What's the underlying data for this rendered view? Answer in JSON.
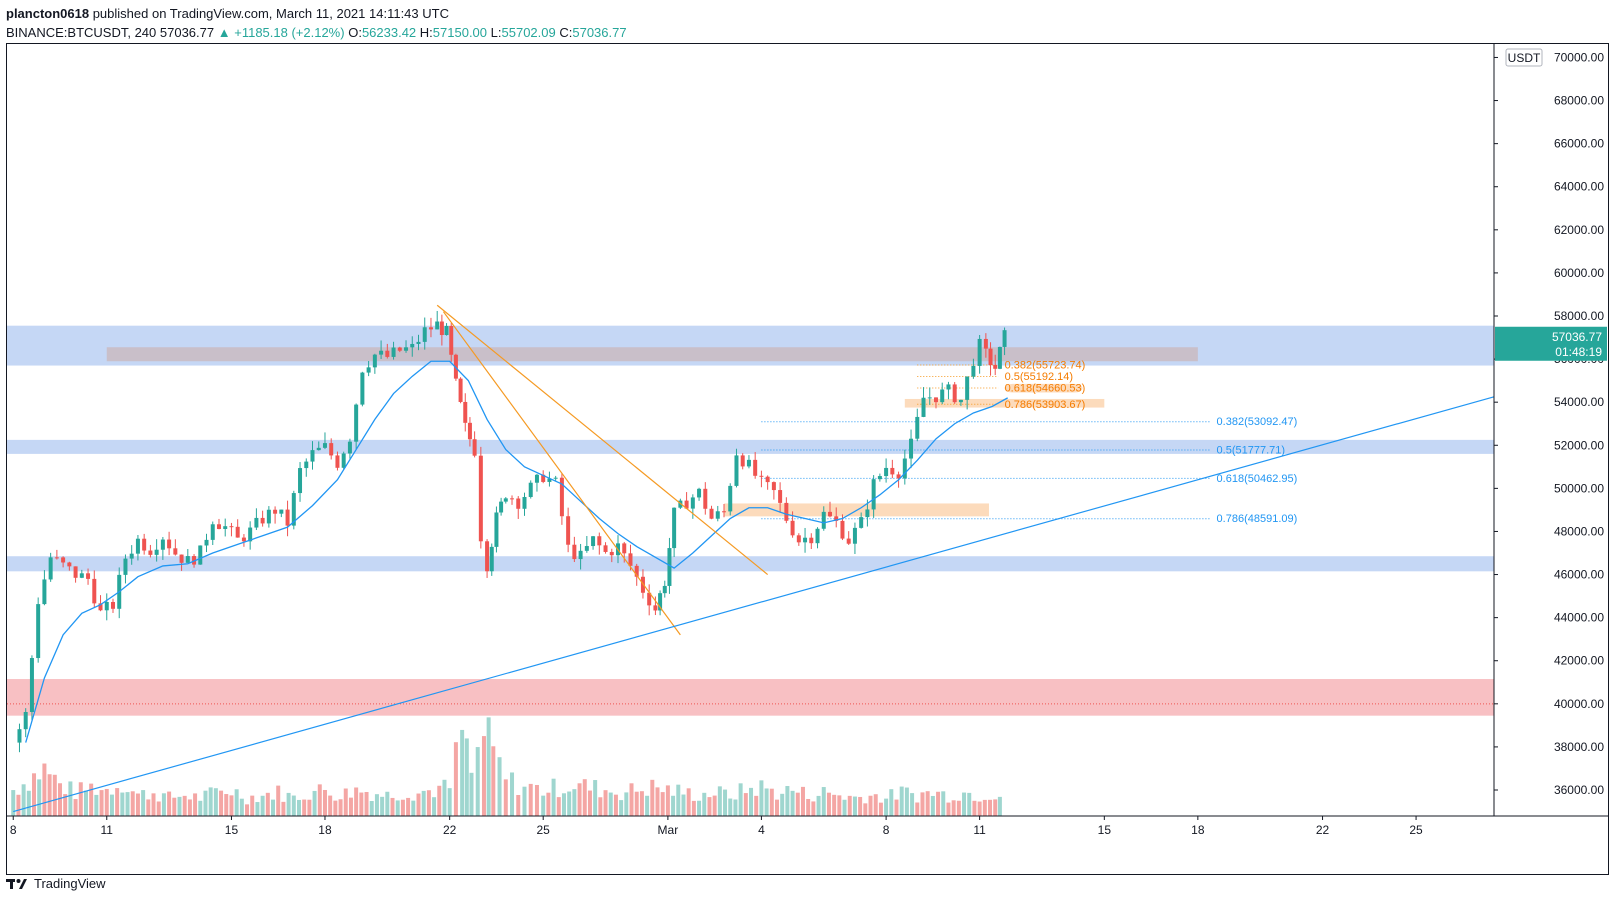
{
  "header": {
    "publisher_line": "plancton0618 published on TradingView.com, March 11, 2021 14:11:43 UTC",
    "author": "plancton0618",
    "publisher_rest": " published on TradingView.com, March 11, 2021 14:11:43 UTC",
    "symbol": "BINANCE:BTCUSDT, 240",
    "last": "57036.77",
    "change": "▲ +1185.18 (+2.12%)",
    "o_label": "O:",
    "o": "56233.42",
    "h_label": "H:",
    "h": "57150.00",
    "l_label": "L:",
    "l": "55702.09",
    "c_label": "C:",
    "c": "57036.77"
  },
  "footer": {
    "brand": "TradingView"
  },
  "colors": {
    "up": "#26a69a",
    "down": "#ef5350",
    "ma": "#2196f3",
    "zone_blue": "#bbd0f3",
    "zone_red": "#f7b5b9",
    "zone_orange": "#fbd5b0",
    "trend_orange": "#f59a23",
    "trend_blue": "#2196f3"
  },
  "chart_data": {
    "type": "candlestick",
    "pair": "BTCUSDT",
    "interval": "240",
    "currency": "USDT",
    "last_price": "57036.77",
    "countdown": "01:48:19",
    "ylim": [
      35000,
      71000
    ],
    "y_ticks": [
      "36000.00",
      "38000.00",
      "40000.00",
      "42000.00",
      "44000.00",
      "46000.00",
      "48000.00",
      "50000.00",
      "52000.00",
      "54000.00",
      "56000.00",
      "58000.00",
      "60000.00",
      "62000.00",
      "64000.00",
      "66000.00",
      "68000.00",
      "70000.00"
    ],
    "x_ticks": [
      {
        "label": "8",
        "day": 8
      },
      {
        "label": "11",
        "day": 11
      },
      {
        "label": "15",
        "day": 15
      },
      {
        "label": "18",
        "day": 18
      },
      {
        "label": "22",
        "day": 22
      },
      {
        "label": "25",
        "day": 25
      },
      {
        "label": "Mar",
        "day": 29
      },
      {
        "label": "4",
        "day": 32
      },
      {
        "label": "8",
        "day": 36
      },
      {
        "label": "11",
        "day": 39
      },
      {
        "label": "15",
        "day": 43
      },
      {
        "label": "18",
        "day": 46
      },
      {
        "label": "22",
        "day": 50
      },
      {
        "label": "25",
        "day": 53
      }
    ],
    "xlim_days": [
      7.8,
      55.5
    ],
    "close_path": [
      [
        8.0,
        38200
      ],
      [
        8.4,
        39500
      ],
      [
        8.8,
        44800
      ],
      [
        9.2,
        46800
      ],
      [
        9.6,
        46400
      ],
      [
        10.0,
        46000
      ],
      [
        10.4,
        45800
      ],
      [
        10.8,
        44200
      ],
      [
        11.2,
        44600
      ],
      [
        11.6,
        46800
      ],
      [
        12.0,
        47600
      ],
      [
        12.4,
        47200
      ],
      [
        12.8,
        47800
      ],
      [
        13.2,
        47000
      ],
      [
        13.6,
        46600
      ],
      [
        14.0,
        47000
      ],
      [
        14.4,
        48600
      ],
      [
        14.8,
        48200
      ],
      [
        15.2,
        47600
      ],
      [
        15.6,
        48000
      ],
      [
        16.0,
        48600
      ],
      [
        16.4,
        49000
      ],
      [
        16.8,
        48400
      ],
      [
        17.2,
        50800
      ],
      [
        17.6,
        51600
      ],
      [
        18.0,
        51900
      ],
      [
        18.4,
        51200
      ],
      [
        18.8,
        52400
      ],
      [
        19.2,
        55600
      ],
      [
        19.6,
        56200
      ],
      [
        20.0,
        56100
      ],
      [
        20.4,
        56400
      ],
      [
        20.8,
        56500
      ],
      [
        21.2,
        57300
      ],
      [
        21.6,
        57600
      ],
      [
        21.9,
        57200
      ],
      [
        22.2,
        54800
      ],
      [
        22.5,
        52800
      ],
      [
        22.8,
        51800
      ],
      [
        23.0,
        47800
      ],
      [
        23.2,
        46500
      ],
      [
        23.5,
        48600
      ],
      [
        23.8,
        49800
      ],
      [
        24.2,
        49400
      ],
      [
        24.6,
        50000
      ],
      [
        25.0,
        50600
      ],
      [
        25.4,
        50200
      ],
      [
        25.8,
        47200
      ],
      [
        26.2,
        46800
      ],
      [
        26.6,
        47600
      ],
      [
        27.0,
        47000
      ],
      [
        27.4,
        47300
      ],
      [
        27.8,
        46400
      ],
      [
        28.2,
        45300
      ],
      [
        28.6,
        44400
      ],
      [
        28.9,
        45700
      ],
      [
        29.2,
        48800
      ],
      [
        29.6,
        49400
      ],
      [
        30.0,
        49800
      ],
      [
        30.4,
        48600
      ],
      [
        30.8,
        48900
      ],
      [
        31.2,
        51700
      ],
      [
        31.6,
        51000
      ],
      [
        32.0,
        50200
      ],
      [
        32.4,
        49800
      ],
      [
        32.8,
        48600
      ],
      [
        33.2,
        47600
      ],
      [
        33.6,
        47800
      ],
      [
        34.0,
        48800
      ],
      [
        34.4,
        48400
      ],
      [
        34.8,
        47600
      ],
      [
        35.2,
        48400
      ],
      [
        35.6,
        50200
      ],
      [
        36.0,
        51000
      ],
      [
        36.4,
        50800
      ],
      [
        36.8,
        52000
      ],
      [
        37.2,
        54200
      ],
      [
        37.6,
        54300
      ],
      [
        38.0,
        54500
      ],
      [
        38.4,
        54100
      ],
      [
        38.8,
        56000
      ],
      [
        39.0,
        56600
      ],
      [
        39.2,
        56200
      ],
      [
        39.5,
        55600
      ],
      [
        39.8,
        57037
      ]
    ],
    "ma_path": [
      [
        8.4,
        38200
      ],
      [
        9.0,
        41200
      ],
      [
        9.6,
        43200
      ],
      [
        10.2,
        44200
      ],
      [
        10.8,
        44600
      ],
      [
        11.4,
        45200
      ],
      [
        12.0,
        45900
      ],
      [
        12.8,
        46400
      ],
      [
        13.6,
        46500
      ],
      [
        14.4,
        47000
      ],
      [
        15.2,
        47400
      ],
      [
        16.0,
        47800
      ],
      [
        16.8,
        48200
      ],
      [
        17.6,
        49200
      ],
      [
        18.4,
        50400
      ],
      [
        19.0,
        51800
      ],
      [
        19.6,
        53200
      ],
      [
        20.2,
        54400
      ],
      [
        20.8,
        55200
      ],
      [
        21.4,
        55900
      ],
      [
        22.0,
        55900
      ],
      [
        22.6,
        55000
      ],
      [
        23.2,
        53200
      ],
      [
        23.8,
        51800
      ],
      [
        24.4,
        51000
      ],
      [
        25.0,
        50600
      ],
      [
        25.6,
        50200
      ],
      [
        26.2,
        49400
      ],
      [
        26.8,
        48600
      ],
      [
        27.4,
        47900
      ],
      [
        28.0,
        47300
      ],
      [
        28.6,
        46800
      ],
      [
        29.2,
        46300
      ],
      [
        29.8,
        47000
      ],
      [
        30.4,
        47800
      ],
      [
        31.0,
        48600
      ],
      [
        31.6,
        49100
      ],
      [
        32.2,
        49100
      ],
      [
        32.8,
        48800
      ],
      [
        33.4,
        48600
      ],
      [
        34.0,
        48400
      ],
      [
        34.6,
        48600
      ],
      [
        35.2,
        49100
      ],
      [
        35.8,
        49700
      ],
      [
        36.4,
        50400
      ],
      [
        37.0,
        51300
      ],
      [
        37.6,
        52300
      ],
      [
        38.2,
        53000
      ],
      [
        38.8,
        53500
      ],
      [
        39.4,
        53800
      ],
      [
        39.9,
        54200
      ]
    ],
    "zones": [
      {
        "y1": 55700,
        "y2": 57550,
        "d1": 7.8,
        "d2": 55.5,
        "color": "blue"
      },
      {
        "y1": 51600,
        "y2": 52250,
        "d1": 7.8,
        "d2": 55.5,
        "color": "blue"
      },
      {
        "y1": 46150,
        "y2": 46850,
        "d1": 7.8,
        "d2": 55.5,
        "color": "blue"
      },
      {
        "y1": 39450,
        "y2": 41150,
        "d1": 7.8,
        "d2": 55.5,
        "color": "red"
      },
      {
        "y1": 55900,
        "y2": 56550,
        "d1": 11.0,
        "d2": 46.0,
        "color": "gray"
      },
      {
        "y1": 48700,
        "y2": 49300,
        "d1": 30.8,
        "d2": 39.3,
        "color": "orange"
      },
      {
        "y1": 53750,
        "y2": 54150,
        "d1": 36.6,
        "d2": 43.0,
        "color": "orange"
      },
      {
        "y1": 54450,
        "y2": 54850,
        "d1": 39.8,
        "d2": 42.3,
        "color": "orange_pill"
      }
    ],
    "dotted_lines": [
      {
        "y": 40000,
        "d1": 7.8,
        "d2": 55.5,
        "color": "down"
      }
    ],
    "trendlines": [
      {
        "from": [
          21.6,
          58500
        ],
        "to": [
          32.2,
          46000
        ],
        "color": "orange"
      },
      {
        "from": [
          21.8,
          58200
        ],
        "to": [
          29.4,
          43200
        ],
        "color": "orange"
      },
      {
        "from": [
          8.0,
          35000
        ],
        "to": [
          55.5,
          54250
        ],
        "color": "blue"
      }
    ],
    "fib_orange": [
      {
        "label": "0.382(55723.74)",
        "y": 55723.74
      },
      {
        "label": "0.5(55192.14)",
        "y": 55192.14
      },
      {
        "label": "0.618(54660.53)",
        "y": 54660.53
      },
      {
        "label": "0.786(53903.67)",
        "y": 53903.67
      }
    ],
    "fib_blue": [
      {
        "label": "0.382(53092.47)",
        "y": 53092.47
      },
      {
        "label": "0.5(51777.71)",
        "y": 51777.71
      },
      {
        "label": "0.618(50462.95)",
        "y": 50462.95
      },
      {
        "label": "0.786(48591.09)",
        "y": 48591.09
      }
    ],
    "volume_profile": [
      [
        8.0,
        0.5
      ],
      [
        8.5,
        0.7
      ],
      [
        9.0,
        0.9
      ],
      [
        9.5,
        0.6
      ],
      [
        10.0,
        0.45
      ],
      [
        10.5,
        0.55
      ],
      [
        11.0,
        0.5
      ],
      [
        11.5,
        0.65
      ],
      [
        12.0,
        0.4
      ],
      [
        12.5,
        0.45
      ],
      [
        13.0,
        0.35
      ],
      [
        13.5,
        0.4
      ],
      [
        14.0,
        0.35
      ],
      [
        14.5,
        0.45
      ],
      [
        15.0,
        0.5
      ],
      [
        15.5,
        0.35
      ],
      [
        16.0,
        0.4
      ],
      [
        16.5,
        0.45
      ],
      [
        17.0,
        0.35
      ],
      [
        17.5,
        0.45
      ],
      [
        18.0,
        0.5
      ],
      [
        18.5,
        0.4
      ],
      [
        19.0,
        0.5
      ],
      [
        19.5,
        0.45
      ],
      [
        20.0,
        0.4
      ],
      [
        20.5,
        0.45
      ],
      [
        21.0,
        0.45
      ],
      [
        21.5,
        0.5
      ],
      [
        22.0,
        0.55
      ],
      [
        22.4,
        1.65
      ],
      [
        22.7,
        0.8
      ],
      [
        23.1,
        1.6
      ],
      [
        23.4,
        1.2
      ],
      [
        23.8,
        0.7
      ],
      [
        24.2,
        0.6
      ],
      [
        24.6,
        0.55
      ],
      [
        25.0,
        0.5
      ],
      [
        25.5,
        0.55
      ],
      [
        26.0,
        0.6
      ],
      [
        26.5,
        0.55
      ],
      [
        27.0,
        0.5
      ],
      [
        27.5,
        0.45
      ],
      [
        28.0,
        0.5
      ],
      [
        28.5,
        0.55
      ],
      [
        29.0,
        0.5
      ],
      [
        29.5,
        0.45
      ],
      [
        30.0,
        0.4
      ],
      [
        30.5,
        0.45
      ],
      [
        31.0,
        0.4
      ],
      [
        31.5,
        0.5
      ],
      [
        32.0,
        0.55
      ],
      [
        32.5,
        0.45
      ],
      [
        33.0,
        0.5
      ],
      [
        33.5,
        0.4
      ],
      [
        34.0,
        0.45
      ],
      [
        34.5,
        0.4
      ],
      [
        35.0,
        0.35
      ],
      [
        35.5,
        0.4
      ],
      [
        36.0,
        0.35
      ],
      [
        36.5,
        0.45
      ],
      [
        37.0,
        0.4
      ],
      [
        37.5,
        0.45
      ],
      [
        38.0,
        0.4
      ],
      [
        38.5,
        0.45
      ],
      [
        39.0,
        0.4
      ],
      [
        39.5,
        0.45
      ],
      [
        39.8,
        0.4
      ]
    ]
  }
}
